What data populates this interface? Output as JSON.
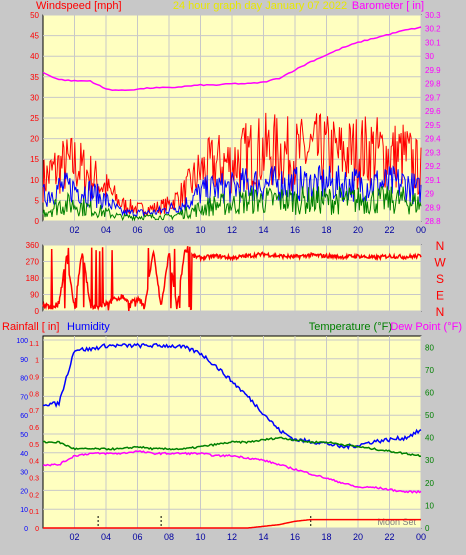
{
  "header": {
    "left": "Windspeed [mph]",
    "center": "24 hour graph day   January 07 2022",
    "right": "Barometer [ in]"
  },
  "colors": {
    "bg": "#c8c8c8",
    "plot": "#ffffc0",
    "grid": "#c8c8c8",
    "frame": "#000000",
    "wind_max": "#ff0000",
    "wind_avg": "#0000ff",
    "wind_min": "#008000",
    "barometer": "#ff00ff",
    "direction": "#ff0000",
    "humidity": "#0000ff",
    "temperature": "#008000",
    "dewpoint": "#ff00ff",
    "rainfall": "#ff0000",
    "day_title": "#e8e800",
    "x_tick_label": "#0000a0"
  },
  "chart_data": [
    {
      "type": "line",
      "title": "24 hour graph day   January 07 2022",
      "xlabel": "",
      "x_ticks": [
        "02",
        "04",
        "06",
        "08",
        "10",
        "12",
        "14",
        "16",
        "18",
        "20",
        "22",
        "00"
      ],
      "ylabel": "Windspeed [mph]",
      "ylim": [
        0,
        50
      ],
      "y_ticks": [
        0,
        5,
        10,
        15,
        20,
        25,
        30,
        35,
        40,
        45,
        50
      ],
      "y2label": "Barometer [ in]",
      "y2lim": [
        28.8,
        30.3
      ],
      "y2_ticks": [
        "28.8",
        "28.9",
        "29",
        "29.1",
        "29.2",
        "29.3",
        "29.4",
        "29.5",
        "29.6",
        "29.7",
        "29.8",
        "29.9",
        "30",
        "30.1",
        "30.2",
        "30.3"
      ],
      "grid": true,
      "x_hours": [
        0,
        1,
        2,
        3,
        4,
        5,
        6,
        7,
        8,
        9,
        10,
        11,
        12,
        13,
        14,
        15,
        16,
        17,
        18,
        19,
        20,
        21,
        22,
        23,
        24
      ],
      "series": [
        {
          "key": "wind_max",
          "values": [
            10,
            13,
            14,
            11,
            8,
            4,
            3,
            3,
            4,
            7,
            12,
            14,
            14,
            16,
            17,
            17,
            16,
            17,
            17,
            16,
            17,
            17,
            16,
            16,
            12
          ]
        },
        {
          "key": "wind_avg",
          "values": [
            6,
            8,
            8,
            7,
            5,
            2,
            2,
            2,
            3,
            4,
            7,
            8,
            8,
            9,
            9,
            9,
            9,
            9,
            9,
            9,
            9,
            9,
            9,
            9,
            7
          ]
        },
        {
          "key": "wind_min",
          "values": [
            2,
            4,
            4,
            3,
            2,
            1,
            1,
            1,
            1,
            2,
            3,
            4,
            4,
            5,
            5,
            5,
            5,
            5,
            5,
            5,
            5,
            5,
            5,
            5,
            4
          ]
        },
        {
          "key": "barometer",
          "axis": "y2",
          "values": [
            29.88,
            29.83,
            29.82,
            29.82,
            29.76,
            29.75,
            29.76,
            29.77,
            29.77,
            29.78,
            29.79,
            29.79,
            29.8,
            29.8,
            29.81,
            29.84,
            29.9,
            29.96,
            30.01,
            30.06,
            30.1,
            30.13,
            30.16,
            30.19,
            30.21
          ]
        }
      ]
    },
    {
      "type": "line",
      "ylabel": "",
      "ylim": [
        0,
        360
      ],
      "y_ticks": [
        0,
        90,
        180,
        270,
        360
      ],
      "compass": [
        "N",
        "W",
        "S",
        "E",
        "N"
      ],
      "x_ticks": [
        "02",
        "04",
        "06",
        "08",
        "10",
        "12",
        "14",
        "16",
        "18",
        "20",
        "22",
        "00"
      ],
      "grid": true,
      "x_hours": [
        0,
        0.5,
        1,
        1.5,
        2,
        2.5,
        3,
        3.5,
        4,
        4.5,
        5,
        5.5,
        6,
        6.5,
        7,
        7.5,
        8,
        8.5,
        9,
        9.5,
        10,
        11,
        12,
        13,
        14,
        15,
        16,
        17,
        18,
        19,
        20,
        21,
        22,
        23,
        24
      ],
      "series": [
        {
          "key": "direction",
          "values": [
            30,
            20,
            40,
            300,
            20,
            330,
            30,
            20,
            40,
            60,
            80,
            50,
            60,
            40,
            330,
            20,
            320,
            10,
            330,
            300,
            290,
            300,
            290,
            300,
            310,
            300,
            295,
            305,
            300,
            295,
            300,
            290,
            300,
            295,
            300
          ]
        }
      ]
    },
    {
      "type": "line",
      "x_ticks": [
        "02",
        "04",
        "06",
        "08",
        "10",
        "12",
        "14",
        "16",
        "18",
        "20",
        "22",
        "00"
      ],
      "ylabels": [
        "Rainfall [ in]",
        "Humidity"
      ],
      "ylim_humidity": [
        0,
        100
      ],
      "y_ticks_humidity": [
        0,
        10,
        20,
        30,
        40,
        50,
        60,
        70,
        80,
        90,
        100
      ],
      "ylim_rain": [
        0,
        1.2
      ],
      "y_ticks_rain": [
        "0",
        "0.1",
        "0.2",
        "0.3",
        "0.4",
        "0.5",
        "0.6",
        "0.7",
        "0.8",
        "0.9",
        "1",
        "1.1"
      ],
      "y2labels": [
        "Temperature (°F)",
        "Dew Point (°F)"
      ],
      "y2lim": [
        0,
        85
      ],
      "y2_ticks": [
        0,
        10,
        20,
        30,
        40,
        50,
        60,
        70,
        80
      ],
      "annotation": "Moon Set",
      "grid": true,
      "x_hours": [
        0,
        1,
        2,
        3,
        4,
        5,
        6,
        7,
        8,
        9,
        10,
        11,
        12,
        13,
        14,
        15,
        16,
        17,
        18,
        19,
        20,
        21,
        22,
        23,
        24
      ],
      "moon_marks_hours": [
        3.5,
        7.5,
        17
      ],
      "series": [
        {
          "key": "humidity",
          "values": [
            66,
            66,
            95,
            95,
            97,
            97,
            97,
            97,
            97,
            96,
            93,
            86,
            78,
            70,
            61,
            52,
            47,
            46,
            45,
            43,
            44,
            46,
            47,
            48,
            52
          ]
        },
        {
          "key": "temperature",
          "axis": "y2",
          "values": [
            38,
            38,
            35,
            35,
            35,
            35,
            36,
            35,
            35,
            35,
            36,
            37,
            38,
            38,
            39,
            40,
            39,
            38,
            38,
            37,
            36,
            35,
            34,
            33,
            32
          ]
        },
        {
          "key": "dewpoint",
          "axis": "y2",
          "values": [
            28,
            28,
            32,
            33,
            33,
            33,
            34,
            33,
            33,
            33,
            33,
            32,
            32,
            31,
            30,
            28,
            26,
            24,
            22,
            20,
            18,
            18,
            17,
            16,
            16
          ]
        },
        {
          "key": "rainfall",
          "values": [
            0,
            0,
            0,
            0,
            0,
            0,
            0,
            0,
            0,
            0,
            0,
            0,
            0,
            0,
            0.01,
            0.02,
            0.04,
            0.05,
            0.05,
            0.05,
            0.05,
            0.05,
            0.05,
            0.05,
            0.05
          ]
        }
      ]
    }
  ],
  "labels": {
    "rainfall": "Rainfall [ in]",
    "humidity": "Humidity",
    "temperature": "Temperature (°F)",
    "dewpoint": "Dew Point (°F)"
  }
}
